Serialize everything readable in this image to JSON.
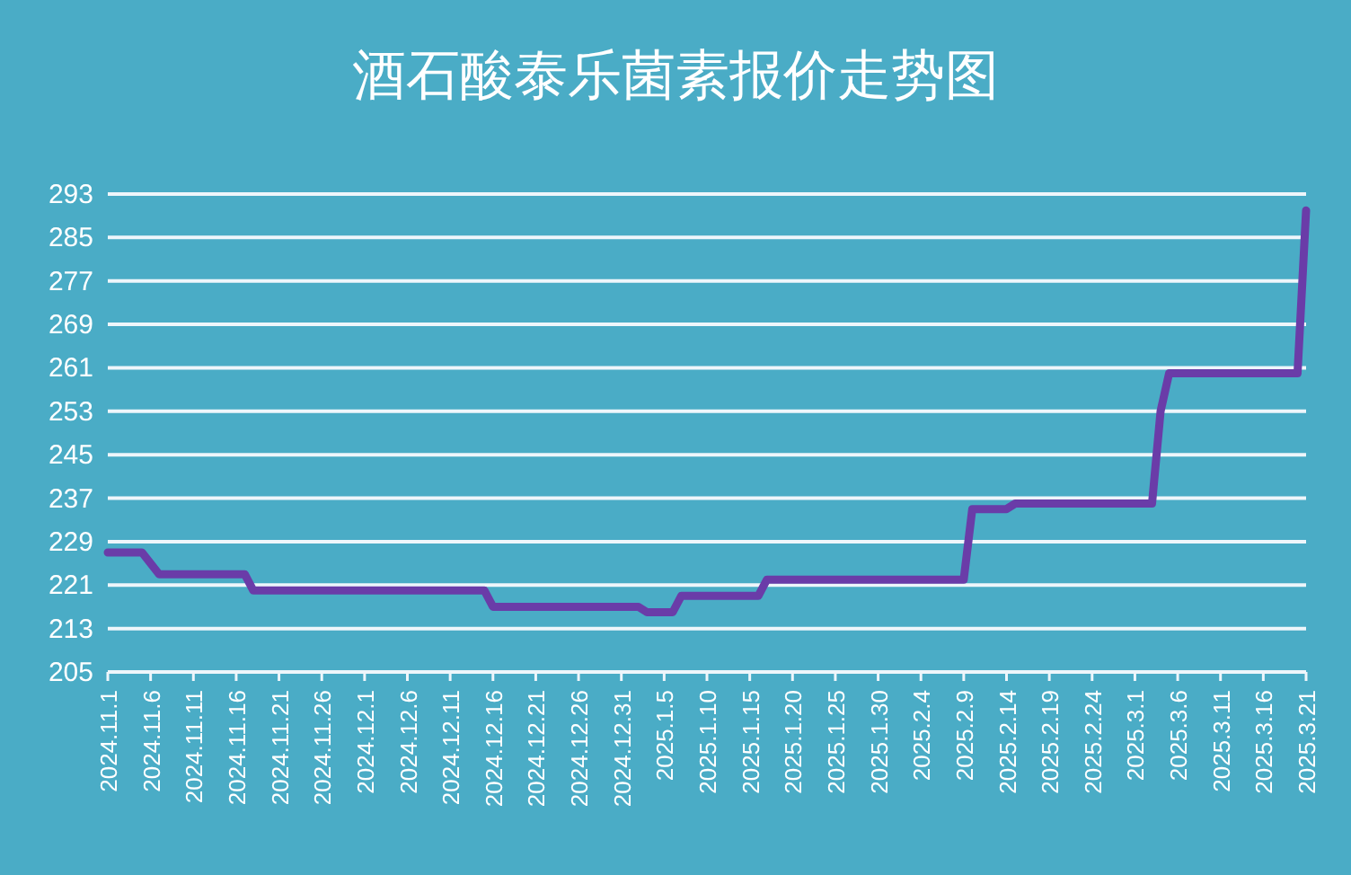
{
  "chart_data": {
    "type": "line",
    "title": "酒石酸泰乐菌素报价走势图",
    "x": [
      "2024-11-01",
      "2024-11-05",
      "2024-11-07",
      "2024-11-17",
      "2024-11-18",
      "2024-12-15",
      "2024-12-16",
      "2025-01-02",
      "2025-01-03",
      "2025-01-06",
      "2025-01-07",
      "2025-01-16",
      "2025-01-17",
      "2025-02-09",
      "2025-02-10",
      "2025-02-14",
      "2025-02-15",
      "2025-03-03",
      "2025-03-04",
      "2025-03-05",
      "2025-03-20",
      "2025-03-21"
    ],
    "series": [
      {
        "color": "#6a3ca8",
        "values": [
          227,
          227,
          223,
          223,
          220,
          220,
          217,
          217,
          216,
          216,
          219,
          219,
          222,
          222,
          235,
          235,
          236,
          236,
          253,
          260,
          260,
          290
        ]
      }
    ],
    "xlim": [
      "2024-11-01",
      "2025-03-21"
    ],
    "xticks": [
      {
        "value": "2024-11-01",
        "label": "2024.11.1"
      },
      {
        "value": "2024-11-06",
        "label": "2024.11.6"
      },
      {
        "value": "2024-11-11",
        "label": "2024.11.11"
      },
      {
        "value": "2024-11-16",
        "label": "2024.11.16"
      },
      {
        "value": "2024-11-21",
        "label": "2024.11.21"
      },
      {
        "value": "2024-11-26",
        "label": "2024.11.26"
      },
      {
        "value": "2024-12-01",
        "label": "2024.12.1"
      },
      {
        "value": "2024-12-06",
        "label": "2024.12.6"
      },
      {
        "value": "2024-12-11",
        "label": "2024.12.11"
      },
      {
        "value": "2024-12-16",
        "label": "2024.12.16"
      },
      {
        "value": "2024-12-21",
        "label": "2024.12.21"
      },
      {
        "value": "2024-12-26",
        "label": "2024.12.26"
      },
      {
        "value": "2024-12-31",
        "label": "2024.12.31"
      },
      {
        "value": "2025-01-05",
        "label": "2025.1.5"
      },
      {
        "value": "2025-01-10",
        "label": "2025.1.10"
      },
      {
        "value": "2025-01-15",
        "label": "2025.1.15"
      },
      {
        "value": "2025-01-20",
        "label": "2025.1.20"
      },
      {
        "value": "2025-01-25",
        "label": "2025.1.25"
      },
      {
        "value": "2025-01-30",
        "label": "2025.1.30"
      },
      {
        "value": "2025-02-04",
        "label": "2025.2.4"
      },
      {
        "value": "2025-02-09",
        "label": "2025.2.9"
      },
      {
        "value": "2025-02-14",
        "label": "2025.2.14"
      },
      {
        "value": "2025-02-19",
        "label": "2025.2.19"
      },
      {
        "value": "2025-02-24",
        "label": "2025.2.24"
      },
      {
        "value": "2025-03-01",
        "label": "2025.3.1"
      },
      {
        "value": "2025-03-06",
        "label": "2025.3.6"
      },
      {
        "value": "2025-03-11",
        "label": "2025.3.11"
      },
      {
        "value": "2025-03-16",
        "label": "2025.3.16"
      },
      {
        "value": "2025-03-21",
        "label": "2025.3.21"
      }
    ],
    "ylim": [
      205,
      293
    ],
    "yticks": [
      205,
      213,
      221,
      229,
      237,
      245,
      253,
      261,
      269,
      277,
      285,
      293
    ],
    "grid": "y",
    "marker": "none",
    "line_style": "solid"
  }
}
